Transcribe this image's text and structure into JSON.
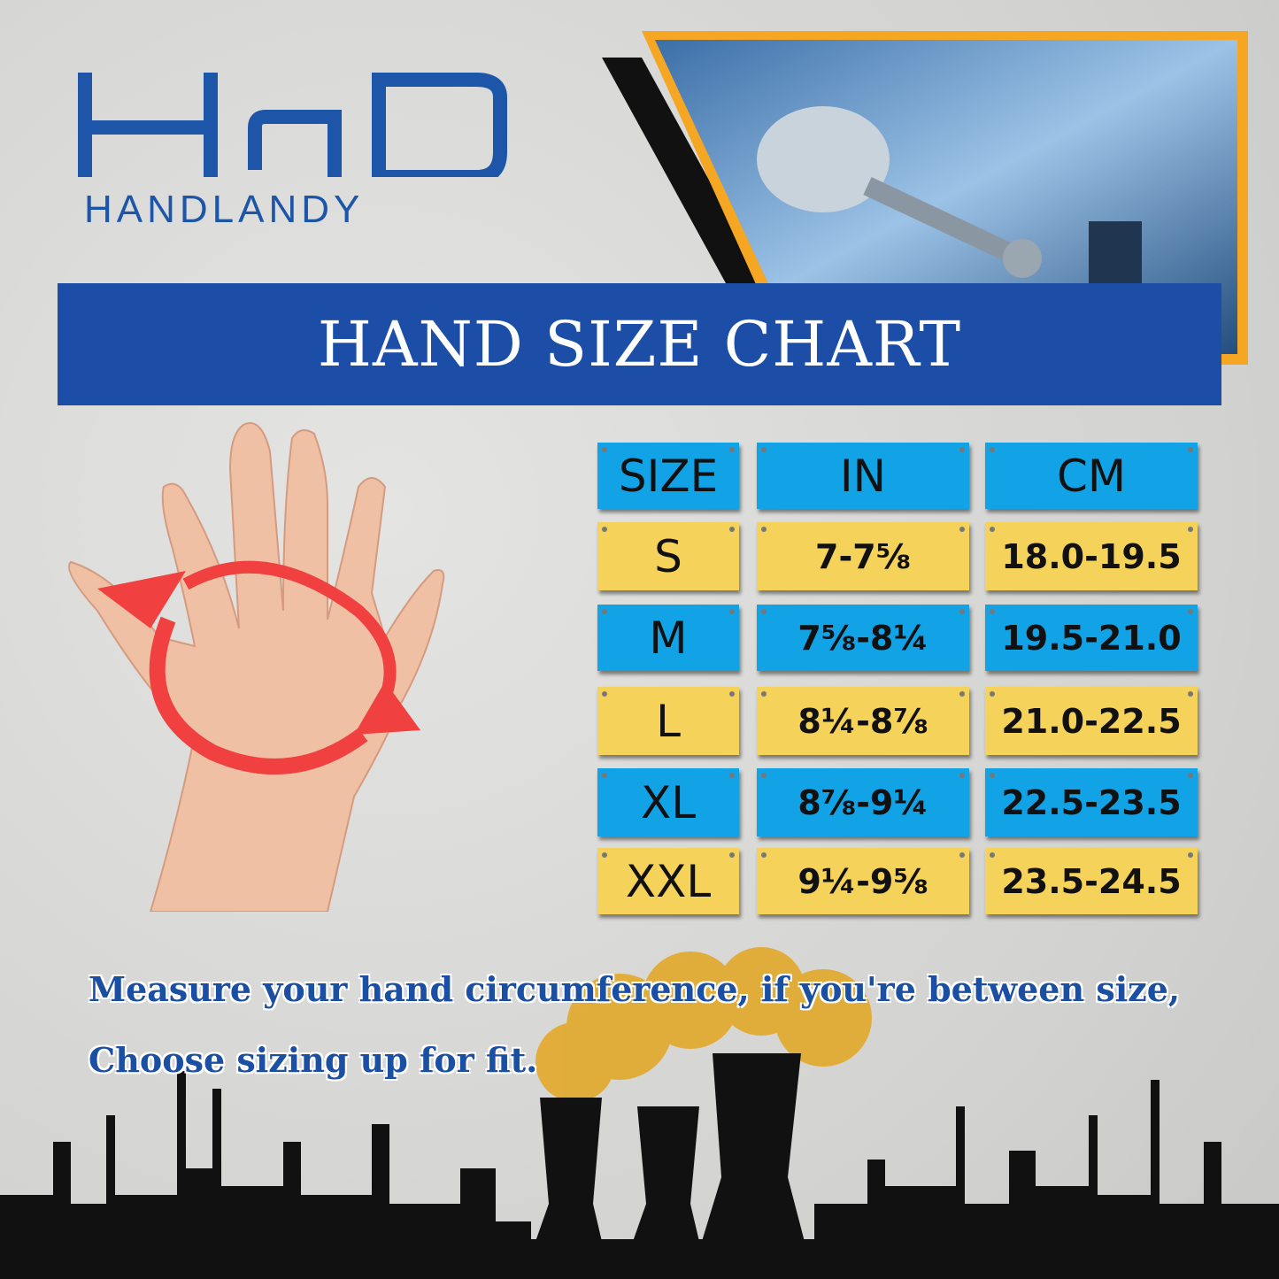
{
  "brand": {
    "name": "HANDLANDY",
    "logo_mark": "HLD"
  },
  "banner": {
    "title": "HAND SIZE CHART"
  },
  "table": {
    "headers": [
      "SIZE",
      "IN",
      "CM"
    ],
    "rows": [
      {
        "size": "S",
        "in": "7-7⅝",
        "cm": "18.0-19.5"
      },
      {
        "size": "M",
        "in": "7⅝-8¼",
        "cm": "19.5-21.0"
      },
      {
        "size": "L",
        "in": "8¼-8⅞",
        "cm": "21.0-22.5"
      },
      {
        "size": "XL",
        "in": "8⅞-9¼",
        "cm": "22.5-23.5"
      },
      {
        "size": "XXL",
        "in": "9¼-9⅝",
        "cm": "23.5-24.5"
      }
    ]
  },
  "caption": {
    "line1": "Measure your hand circumference, if you're between size,",
    "line2": "Choose sizing up for fit."
  },
  "colors": {
    "brand_blue": "#1c4ea8",
    "cell_blue": "#11a3e6",
    "cell_yellow": "#f5d25a",
    "accent_orange": "#f5a623",
    "arrow_red": "#f04040"
  }
}
